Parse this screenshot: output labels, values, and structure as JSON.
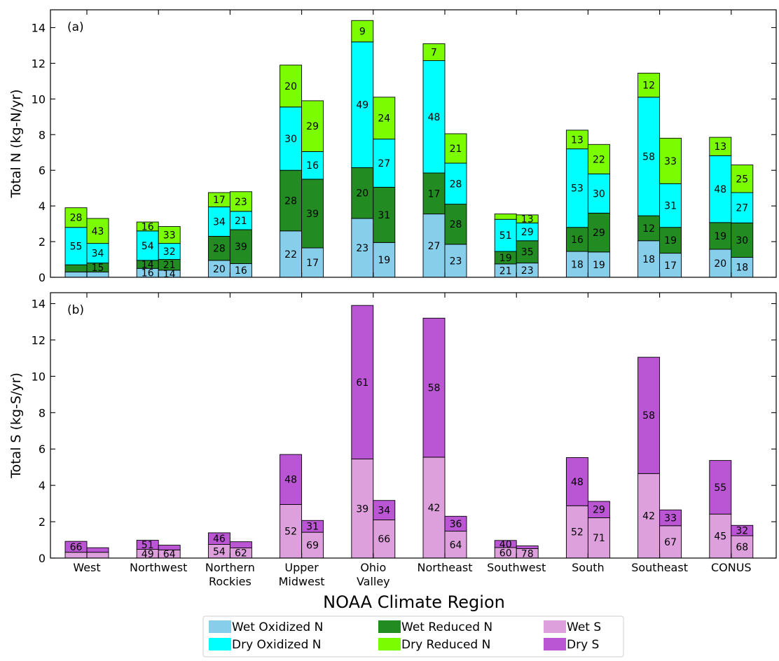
{
  "chart_data": {
    "type": "bar",
    "xlabel": "NOAA Climate Region",
    "categories": [
      "West",
      "Northwest",
      "Northern\nRockies",
      "Upper\nMidwest",
      "Ohio\nValley",
      "Northeast",
      "Southwest",
      "South",
      "Southeast",
      "CONUS"
    ],
    "colors": {
      "wet_oxidized_n": "#87ceeb",
      "wet_reduced_n": "#228b22",
      "dry_oxidized_n": "#00ffff",
      "dry_reduced_n": "#7cfc00",
      "wet_s": "#dda0dd",
      "dry_s": "#ba55d3"
    },
    "legend": [
      {
        "name": "Wet Oxidized N",
        "color_key": "wet_oxidized_n"
      },
      {
        "name": "Wet Reduced N",
        "color_key": "wet_reduced_n"
      },
      {
        "name": "Wet S",
        "color_key": "wet_s"
      },
      {
        "name": "Dry Oxidized N",
        "color_key": "dry_oxidized_n"
      },
      {
        "name": "Dry Reduced N",
        "color_key": "dry_reduced_n"
      },
      {
        "name": "Dry S",
        "color_key": "dry_s"
      }
    ],
    "legend_placement": "bottom-center",
    "panels": [
      {
        "tag": "(a)",
        "ylabel": "Total N (kg-N/yr)",
        "ylim": [
          0,
          15
        ],
        "yticks": [
          0,
          2,
          4,
          6,
          8,
          10,
          12,
          14
        ],
        "segment_order": [
          "wet_oxidized_n",
          "wet_reduced_n",
          "dry_oxidized_n",
          "dry_reduced_n"
        ],
        "bars": [
          [
            {
              "values": [
                0.3,
                0.4,
                2.1,
                1.1
              ],
              "labels": [
                "",
                "",
                "55",
                "28"
              ]
            },
            {
              "values": [
                0.3,
                0.5,
                1.1,
                1.4
              ],
              "labels": [
                "",
                "15",
                "34",
                "43"
              ]
            }
          ],
          [
            {
              "values": [
                0.5,
                0.45,
                1.65,
                0.5
              ],
              "labels": [
                "16",
                "14",
                "54",
                "16"
              ]
            },
            {
              "values": [
                0.4,
                0.6,
                0.9,
                0.95
              ],
              "labels": [
                "14",
                "21",
                "32",
                "33"
              ]
            }
          ],
          [
            {
              "values": [
                0.95,
                1.35,
                1.65,
                0.8
              ],
              "labels": [
                "20",
                "28",
                "34",
                "17"
              ]
            },
            {
              "values": [
                0.77,
                1.9,
                1.03,
                1.1
              ],
              "labels": [
                "16",
                "39",
                "21",
                "23"
              ]
            }
          ],
          [
            {
              "values": [
                2.6,
                3.4,
                3.55,
                2.35
              ],
              "labels": [
                "22",
                "28",
                "30",
                "20"
              ]
            },
            {
              "values": [
                1.65,
                3.85,
                1.55,
                2.85
              ],
              "labels": [
                "17",
                "39",
                "16",
                "29"
              ]
            }
          ],
          [
            {
              "values": [
                3.3,
                2.85,
                7.05,
                1.2
              ],
              "labels": [
                "23",
                "20",
                "49",
                "9"
              ]
            },
            {
              "values": [
                1.95,
                3.1,
                2.7,
                2.35
              ],
              "labels": [
                "19",
                "31",
                "27",
                "24"
              ]
            }
          ],
          [
            {
              "values": [
                3.55,
                2.3,
                6.3,
                0.95
              ],
              "labels": [
                "27",
                "17",
                "48",
                "7"
              ]
            },
            {
              "values": [
                1.85,
                2.25,
                2.3,
                1.65
              ],
              "labels": [
                "23",
                "28",
                "28",
                "21"
              ]
            }
          ],
          [
            {
              "values": [
                0.75,
                0.7,
                1.8,
                0.3
              ],
              "labels": [
                "21",
                "19",
                "51",
                ""
              ]
            },
            {
              "values": [
                0.8,
                1.25,
                1.0,
                0.45
              ],
              "labels": [
                "23",
                "35",
                "29",
                "13"
              ]
            }
          ],
          [
            {
              "values": [
                1.45,
                1.35,
                4.4,
                1.05
              ],
              "labels": [
                "18",
                "16",
                "53",
                "13"
              ]
            },
            {
              "values": [
                1.42,
                2.18,
                2.2,
                1.65
              ],
              "labels": [
                "19",
                "29",
                "30",
                "22"
              ]
            }
          ],
          [
            {
              "values": [
                2.05,
                1.4,
                6.65,
                1.35
              ],
              "labels": [
                "18",
                "12",
                "58",
                "12"
              ]
            },
            {
              "values": [
                1.35,
                1.45,
                2.45,
                2.55
              ],
              "labels": [
                "17",
                "19",
                "31",
                "33"
              ]
            }
          ],
          [
            {
              "values": [
                1.57,
                1.5,
                3.75,
                1.03
              ],
              "labels": [
                "20",
                "19",
                "48",
                "13"
              ]
            },
            {
              "values": [
                1.12,
                1.93,
                1.7,
                1.55
              ],
              "labels": [
                "18",
                "30",
                "27",
                "25"
              ]
            }
          ]
        ]
      },
      {
        "tag": "(b)",
        "ylabel": "Total S (kg-S/yr)",
        "ylim": [
          0,
          14.6
        ],
        "yticks": [
          0,
          2,
          4,
          6,
          8,
          10,
          12,
          14
        ],
        "segment_order": [
          "wet_s",
          "dry_s"
        ],
        "bars": [
          [
            {
              "values": [
                0.32,
                0.6
              ],
              "labels": [
                "",
                "66"
              ]
            },
            {
              "values": [
                0.32,
                0.25
              ],
              "labels": [
                "",
                ""
              ]
            }
          ],
          [
            {
              "values": [
                0.48,
                0.5
              ],
              "labels": [
                "49",
                "51"
              ]
            },
            {
              "values": [
                0.45,
                0.26
              ],
              "labels": [
                "64",
                ""
              ]
            }
          ],
          [
            {
              "values": [
                0.75,
                0.64
              ],
              "labels": [
                "54",
                "46"
              ]
            },
            {
              "values": [
                0.56,
                0.34
              ],
              "labels": [
                "62",
                ""
              ]
            }
          ],
          [
            {
              "values": [
                2.95,
                2.75
              ],
              "labels": [
                "52",
                "48"
              ]
            },
            {
              "values": [
                1.42,
                0.65
              ],
              "labels": [
                "69",
                "31"
              ]
            }
          ],
          [
            {
              "values": [
                5.45,
                8.45
              ],
              "labels": [
                "39",
                "61"
              ]
            },
            {
              "values": [
                2.1,
                1.07
              ],
              "labels": [
                "66",
                "34"
              ]
            }
          ],
          [
            {
              "values": [
                5.55,
                7.65
              ],
              "labels": [
                "42",
                "58"
              ]
            },
            {
              "values": [
                1.48,
                0.82
              ],
              "labels": [
                "64",
                "36"
              ]
            }
          ],
          [
            {
              "values": [
                0.58,
                0.39
              ],
              "labels": [
                "60",
                "40"
              ]
            },
            {
              "values": [
                0.52,
                0.15
              ],
              "labels": [
                "78",
                ""
              ]
            }
          ],
          [
            {
              "values": [
                2.88,
                2.65
              ],
              "labels": [
                "52",
                "48"
              ]
            },
            {
              "values": [
                2.22,
                0.9
              ],
              "labels": [
                "71",
                "29"
              ]
            }
          ],
          [
            {
              "values": [
                4.65,
                6.4
              ],
              "labels": [
                "42",
                "58"
              ]
            },
            {
              "values": [
                1.78,
                0.87
              ],
              "labels": [
                "67",
                "33"
              ]
            }
          ],
          [
            {
              "values": [
                2.42,
                2.95
              ],
              "labels": [
                "45",
                "55"
              ]
            },
            {
              "values": [
                1.23,
                0.57
              ],
              "labels": [
                "68",
                "32"
              ]
            }
          ]
        ]
      }
    ]
  }
}
